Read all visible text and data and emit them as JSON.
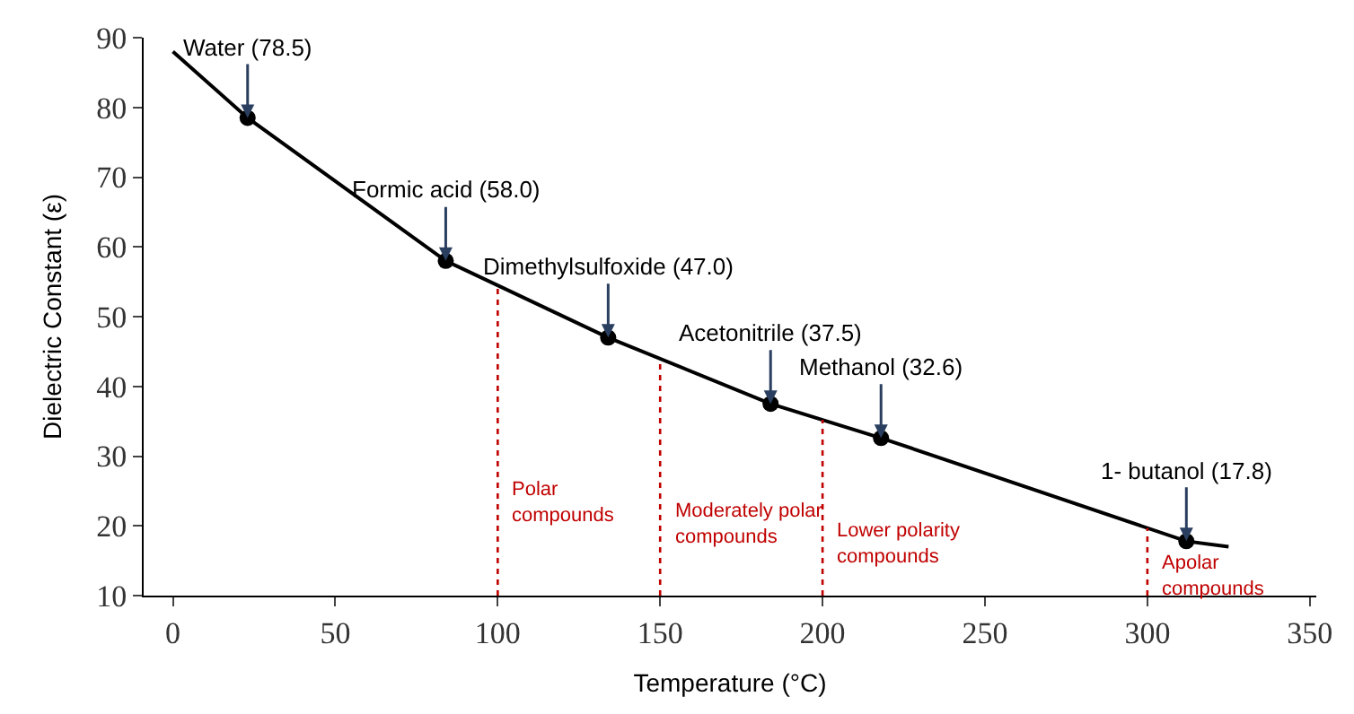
{
  "chart_data": {
    "type": "line",
    "xlabel": "Temperature (°C)",
    "ylabel": "Dielectric Constant (ε)",
    "xlim": [
      -9,
      352
    ],
    "xticks": [
      0,
      50,
      100,
      150,
      200,
      250,
      300,
      350
    ],
    "ylim": [
      10,
      90
    ],
    "yticks": [
      10,
      20,
      30,
      40,
      50,
      60,
      70,
      80,
      90
    ],
    "series": [
      {
        "color": "#000000",
        "marker": "none",
        "x": [
          0,
          23,
          84,
          134,
          184,
          218,
          312,
          325
        ],
        "values": [
          88,
          78.5,
          58.0,
          47.0,
          37.5,
          32.6,
          17.8,
          17
        ]
      },
      {
        "type": "scatter",
        "color": "#000000",
        "marker": "circle",
        "x": [
          23,
          84,
          134,
          184,
          218,
          312
        ],
        "values": [
          78.5,
          58.0,
          47.0,
          37.5,
          32.6,
          17.8
        ]
      }
    ],
    "annotations": [
      {
        "text": "Water (78.5)",
        "x": 23,
        "y": 78.5
      },
      {
        "text": "Formic acid (58.0)",
        "x": 84,
        "y": 58.0
      },
      {
        "text": "Dimethylsulfoxide (47.0)",
        "x": 134,
        "y": 47.0
      },
      {
        "text": "Acetonitrile (37.5)",
        "x": 184,
        "y": 37.5
      },
      {
        "text": "Methanol (32.6)",
        "x": 218,
        "y": 32.6
      },
      {
        "text": "1- butanol (17.8)",
        "x": 312,
        "y": 17.8
      }
    ],
    "ref_lines": [
      {
        "axis": "x",
        "value": 100,
        "label": "Polar compounds",
        "color": "#c00000",
        "line_style": "dotted"
      },
      {
        "axis": "x",
        "value": 150,
        "label": "Moderately polar compounds",
        "color": "#c00000",
        "line_style": "dotted"
      },
      {
        "axis": "x",
        "value": 200,
        "label": "Lower polarity compounds",
        "color": "#c00000",
        "line_style": "dotted"
      },
      {
        "axis": "x",
        "value": 300,
        "label": "Apolar compounds",
        "color": "#c00000",
        "line_style": "dotted"
      }
    ]
  }
}
